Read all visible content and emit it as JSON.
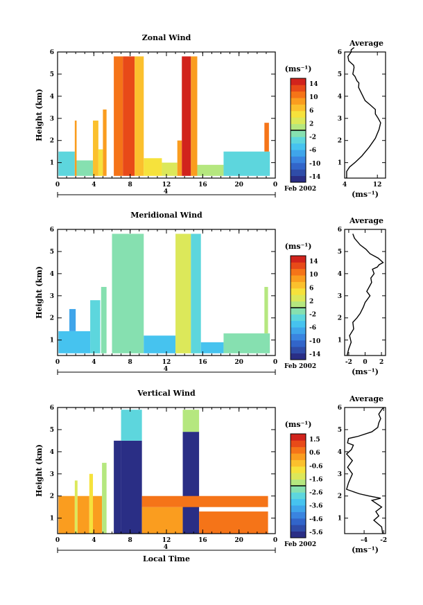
{
  "colormap": [
    "#2a2e85",
    "#2f4ca8",
    "#3265c9",
    "#3a84df",
    "#3fa5ea",
    "#46c3ef",
    "#5dd6dd",
    "#86e0b0",
    "#b5e77f",
    "#dce85a",
    "#f6e23c",
    "#fbc02d",
    "#fa9d1f",
    "#f57418",
    "#e84a18",
    "#d1231c"
  ],
  "chart_data": [
    {
      "type": "heatmap",
      "title": "Zonal Wind",
      "xlabel": "",
      "ylabel": "Height (km)",
      "xlim": [
        0,
        24
      ],
      "ylim": [
        0.3,
        6
      ],
      "xticks": [
        "0",
        "4",
        "8",
        "12",
        "16",
        "20",
        "0"
      ],
      "yticks": [
        "1",
        "2",
        "3",
        "4",
        "5",
        "6"
      ],
      "date_day": "4",
      "date_label": "Feb 2002",
      "colorbar": {
        "unit": "(ms⁻¹)",
        "ticks": [
          "14",
          "10",
          "6",
          "2",
          "-2",
          "-6",
          "-10",
          "-14"
        ],
        "min": -16,
        "max": 16
      },
      "blocks": [
        {
          "t0": 0.1,
          "t1": 1.9,
          "h0": 0.4,
          "h1": 1.5,
          "v": -4
        },
        {
          "t0": 1.9,
          "t1": 2.1,
          "h0": 0.4,
          "h1": 2.9,
          "v": 8
        },
        {
          "t0": 2.1,
          "t1": 3.9,
          "h0": 0.4,
          "h1": 1.1,
          "v": -2
        },
        {
          "t0": 3.9,
          "t1": 4.5,
          "h0": 0.4,
          "h1": 2.9,
          "v": 6
        },
        {
          "t0": 4.5,
          "t1": 5.0,
          "h0": 0.4,
          "h1": 1.6,
          "v": 4
        },
        {
          "t0": 5.0,
          "t1": 5.4,
          "h0": 0.4,
          "h1": 3.4,
          "v": 9
        },
        {
          "t0": 6.2,
          "t1": 7.2,
          "h0": 0.4,
          "h1": 5.8,
          "v": 11
        },
        {
          "t0": 7.2,
          "t1": 8.5,
          "h0": 0.4,
          "h1": 5.8,
          "v": 12
        },
        {
          "t0": 8.5,
          "t1": 9.5,
          "h0": 0.4,
          "h1": 5.8,
          "v": 7
        },
        {
          "t0": 9.5,
          "t1": 11.5,
          "h0": 0.4,
          "h1": 1.2,
          "v": 4
        },
        {
          "t0": 11.5,
          "t1": 13.2,
          "h0": 0.4,
          "h1": 1.0,
          "v": 3
        },
        {
          "t0": 13.2,
          "t1": 13.7,
          "h0": 0.4,
          "h1": 2.0,
          "v": 8
        },
        {
          "t0": 13.7,
          "t1": 14.7,
          "h0": 0.4,
          "h1": 5.8,
          "v": 14
        },
        {
          "t0": 14.7,
          "t1": 15.4,
          "h0": 0.4,
          "h1": 5.8,
          "v": 9
        },
        {
          "t0": 15.4,
          "t1": 18.3,
          "h0": 0.4,
          "h1": 0.9,
          "v": 1
        },
        {
          "t0": 18.3,
          "t1": 23.4,
          "h0": 0.4,
          "h1": 1.5,
          "v": -4
        },
        {
          "t0": 22.8,
          "t1": 23.3,
          "h0": 1.5,
          "h1": 2.8,
          "v": 10
        }
      ],
      "profile": {
        "title": "Average",
        "xlabel": "(ms⁻¹)",
        "xticks": [
          "4",
          "12"
        ],
        "xlim": [
          4,
          14
        ],
        "x": [
          4.5,
          4.5,
          5.2,
          6.5,
          8.2,
          10.0,
          11.5,
          12.4,
          12.8,
          12.2,
          11.5,
          11.5,
          10.3,
          9.0,
          8.2,
          7.4,
          7.5,
          7.0,
          6.5,
          6.0,
          6.3,
          6.2,
          5.6,
          5.0,
          4.8,
          5.2,
          5.6,
          5.6,
          6.3
        ],
        "y": [
          0.3,
          0.6,
          0.8,
          1.0,
          1.3,
          1.7,
          2.1,
          2.5,
          2.8,
          3.0,
          3.2,
          3.4,
          3.6,
          3.8,
          4.1,
          4.4,
          4.6,
          4.7,
          4.9,
          5.0,
          5.3,
          5.4,
          5.5,
          5.6,
          5.8,
          5.9,
          6.0,
          6.1,
          6.2
        ]
      }
    },
    {
      "type": "heatmap",
      "title": "Meridional Wind",
      "xlabel": "",
      "ylabel": "Height (km)",
      "xlim": [
        0,
        24
      ],
      "ylim": [
        0.3,
        6
      ],
      "xticks": [
        "0",
        "4",
        "8",
        "12",
        "16",
        "20",
        "0"
      ],
      "yticks": [
        "1",
        "2",
        "3",
        "4",
        "5",
        "6"
      ],
      "date_day": "4",
      "date_label": "Feb 2002",
      "colorbar": {
        "unit": "(ms⁻¹)",
        "ticks": [
          "14",
          "10",
          "6",
          "2",
          "-2",
          "-6",
          "-10",
          "-14"
        ],
        "min": -16,
        "max": 16
      },
      "blocks": [
        {
          "t0": 0.1,
          "t1": 3.6,
          "h0": 0.4,
          "h1": 1.4,
          "v": -5
        },
        {
          "t0": 1.3,
          "t1": 2.0,
          "h0": 1.4,
          "h1": 2.4,
          "v": -7
        },
        {
          "t0": 3.6,
          "t1": 4.7,
          "h0": 0.4,
          "h1": 2.8,
          "v": -3
        },
        {
          "t0": 4.8,
          "t1": 5.4,
          "h0": 0.4,
          "h1": 3.4,
          "v": -2
        },
        {
          "t0": 6.0,
          "t1": 9.5,
          "h0": 0.4,
          "h1": 5.8,
          "v": -1
        },
        {
          "t0": 9.5,
          "t1": 13.0,
          "h0": 0.4,
          "h1": 1.2,
          "v": -5
        },
        {
          "t0": 13.0,
          "t1": 14.7,
          "h0": 0.4,
          "h1": 5.8,
          "v": 2
        },
        {
          "t0": 14.7,
          "t1": 15.8,
          "h0": 0.4,
          "h1": 5.8,
          "v": -3
        },
        {
          "t0": 15.8,
          "t1": 18.3,
          "h0": 0.4,
          "h1": 0.9,
          "v": -5
        },
        {
          "t0": 18.3,
          "t1": 23.4,
          "h0": 0.4,
          "h1": 1.3,
          "v": -1
        },
        {
          "t0": 22.8,
          "t1": 23.2,
          "h0": 1.3,
          "h1": 3.4,
          "v": 1
        }
      ],
      "profile": {
        "title": "Average",
        "xlabel": "(ms⁻¹)",
        "xticks": [
          "-2",
          "0",
          "2"
        ],
        "xlim": [
          -2.5,
          2.5
        ],
        "x": [
          -2.2,
          -2.0,
          -1.7,
          -1.9,
          -1.4,
          -1.5,
          -1.0,
          -0.6,
          -0.2,
          0.0,
          0.6,
          0.2,
          0.5,
          0.8,
          0.7,
          1.1,
          0.9,
          1.5,
          1.7,
          2.2,
          1.6,
          0.6,
          0.1,
          -0.6,
          -1.3,
          -1.5
        ],
        "y": [
          0.3,
          0.6,
          0.9,
          1.2,
          1.5,
          1.8,
          2.0,
          2.2,
          2.5,
          2.7,
          3.0,
          3.2,
          3.4,
          3.6,
          3.8,
          4.0,
          4.2,
          4.3,
          4.4,
          4.5,
          4.7,
          4.9,
          5.1,
          5.3,
          5.6,
          5.8
        ]
      }
    },
    {
      "type": "heatmap",
      "title": "Vertical Wind",
      "xlabel": "Local Time",
      "ylabel": "Height (km)",
      "xlim": [
        0,
        24
      ],
      "ylim": [
        0.3,
        6
      ],
      "xticks": [
        "0",
        "4",
        "8",
        "12",
        "16",
        "20",
        "0"
      ],
      "yticks": [
        "1",
        "2",
        "3",
        "4",
        "5",
        "6"
      ],
      "date_day": "4",
      "date_label": "Feb 2002",
      "colorbar": {
        "unit": "(ms⁻¹)",
        "ticks": [
          "1.5",
          "0.6",
          "-0.6",
          "-1.6",
          "-2.6",
          "-3.6",
          "-4.6",
          "-5.6"
        ],
        "min": -6.0,
        "max": 2.0
      },
      "blocks": [
        {
          "t0": 0.1,
          "t1": 1.9,
          "h0": 0.3,
          "h1": 2.0,
          "v": 0.4
        },
        {
          "t0": 1.9,
          "t1": 2.2,
          "h0": 0.3,
          "h1": 2.7,
          "v": -1.5
        },
        {
          "t0": 2.2,
          "t1": 3.5,
          "h0": 0.3,
          "h1": 2.0,
          "v": 0.4
        },
        {
          "t0": 3.5,
          "t1": 3.9,
          "h0": 0.3,
          "h1": 3.0,
          "v": -1.0
        },
        {
          "t0": 3.9,
          "t1": 4.9,
          "h0": 0.3,
          "h1": 2.0,
          "v": 0.4
        },
        {
          "t0": 4.9,
          "t1": 5.4,
          "h0": 0.3,
          "h1": 3.5,
          "v": -2.0
        },
        {
          "t0": 6.2,
          "t1": 7.0,
          "h0": 0.3,
          "h1": 4.5,
          "v": -5.8
        },
        {
          "t0": 7.0,
          "t1": 9.3,
          "h0": 0.3,
          "h1": 4.5,
          "v": -5.8
        },
        {
          "t0": 7.0,
          "t1": 9.3,
          "h0": 4.5,
          "h1": 5.9,
          "v": -3.0
        },
        {
          "t0": 9.3,
          "t1": 13.8,
          "h0": 0.3,
          "h1": 1.5,
          "v": 0.4
        },
        {
          "t0": 13.8,
          "t1": 15.6,
          "h0": 0.3,
          "h1": 4.9,
          "v": -5.6
        },
        {
          "t0": 13.8,
          "t1": 15.6,
          "h0": 4.9,
          "h1": 5.9,
          "v": -2.0
        },
        {
          "t0": 15.6,
          "t1": 23.2,
          "h0": 0.3,
          "h1": 1.3,
          "v": 0.5
        },
        {
          "t0": 9.3,
          "t1": 23.2,
          "h0": 1.5,
          "h1": 2.0,
          "v": 0.8
        }
      ],
      "profile": {
        "title": "Average",
        "xlabel": "(ms⁻¹)",
        "xticks": [
          "-4",
          "-2"
        ],
        "xlim": [
          -6,
          -1.8
        ],
        "x": [
          -2.1,
          -2.2,
          -3.0,
          -2.5,
          -2.8,
          -2.2,
          -3.2,
          -2.3,
          -3.5,
          -4.5,
          -5.8,
          -5.6,
          -5.2,
          -5.7,
          -5.2,
          -5.8,
          -5.3,
          -5.1,
          -5.7,
          -5.6,
          -4.6,
          -3.2,
          -2.6,
          -2.5,
          -2.3,
          -2.5,
          -2.2,
          -2.0
        ],
        "y": [
          0.3,
          0.6,
          0.9,
          1.1,
          1.3,
          1.5,
          1.8,
          1.9,
          2.0,
          2.1,
          2.3,
          2.6,
          3.0,
          3.3,
          3.6,
          3.9,
          4.1,
          4.3,
          4.4,
          4.6,
          4.7,
          4.9,
          5.1,
          5.3,
          5.5,
          5.7,
          5.9,
          6.0
        ]
      }
    }
  ]
}
